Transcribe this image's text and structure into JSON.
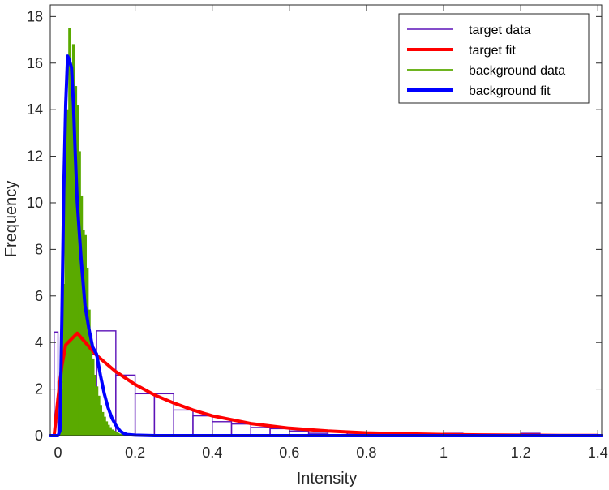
{
  "chart_data": {
    "type": "histogram",
    "xlabel": "Intensity",
    "ylabel": "Frequency",
    "xlim": [
      -0.02,
      1.41
    ],
    "ylim": [
      0,
      18.5
    ],
    "xticks": [
      0,
      0.2,
      0.4,
      0.6,
      0.8,
      1,
      1.2,
      1.4
    ],
    "xtick_labels": [
      "0",
      "0.2",
      "0.4",
      "0.6",
      "0.8",
      "1",
      "1.2",
      "1.4"
    ],
    "yticks": [
      0,
      2,
      4,
      6,
      8,
      10,
      12,
      14,
      16,
      18
    ],
    "ytick_labels": [
      "0",
      "2",
      "4",
      "6",
      "8",
      "10",
      "12",
      "14",
      "16",
      "18"
    ],
    "grid": false,
    "legend_position": "top-right",
    "series": [
      {
        "name": "target data",
        "kind": "histogram-outline",
        "color": "#5c12b8",
        "bin_edges": [
          -0.01,
          0.0,
          0.05,
          0.1,
          0.15,
          0.2,
          0.25,
          0.3,
          0.35,
          0.4,
          0.45,
          0.5,
          0.55,
          0.6,
          0.65,
          0.7,
          0.75,
          0.8,
          0.85,
          0.9,
          0.95,
          1.0,
          1.05,
          1.1,
          1.15,
          1.2,
          1.25,
          1.3,
          1.35,
          1.4
        ],
        "values": [
          4.45,
          2.3,
          3.5,
          4.5,
          2.6,
          1.8,
          1.8,
          1.1,
          0.85,
          0.6,
          0.5,
          0.35,
          0.3,
          0.2,
          0.1,
          0.2,
          0.1,
          0.1,
          0.05,
          0.05,
          0.02,
          0.1,
          0.02,
          0.0,
          0.02,
          0.1,
          0.0,
          0.0,
          0.0
        ]
      },
      {
        "name": "target fit",
        "kind": "line",
        "color": "#ff0000",
        "x": [
          -0.01,
          0.0,
          0.01,
          0.02,
          0.05,
          0.1,
          0.15,
          0.2,
          0.25,
          0.3,
          0.35,
          0.4,
          0.5,
          0.6,
          0.7,
          0.8,
          0.9,
          1.0,
          1.1,
          1.2,
          1.3,
          1.4
        ],
        "y": [
          0.0,
          1.6,
          3.0,
          3.9,
          4.4,
          3.45,
          2.75,
          2.2,
          1.75,
          1.4,
          1.1,
          0.85,
          0.52,
          0.32,
          0.2,
          0.12,
          0.08,
          0.05,
          0.03,
          0.02,
          0.01,
          0.01
        ]
      },
      {
        "name": "background data",
        "kind": "histogram-filled",
        "color": "#5aaa00",
        "bin_width": 0.005,
        "x": [
          0.005,
          0.01,
          0.015,
          0.02,
          0.025,
          0.03,
          0.035,
          0.04,
          0.045,
          0.05,
          0.055,
          0.06,
          0.065,
          0.07,
          0.075,
          0.08,
          0.085,
          0.09,
          0.095,
          0.1,
          0.105,
          0.11,
          0.115,
          0.12,
          0.125,
          0.13,
          0.135,
          0.14,
          0.145,
          0.15,
          0.155,
          0.16,
          0.165,
          0.17,
          0.175
        ],
        "values": [
          0.3,
          2.0,
          6.5,
          11.8,
          14.0,
          17.5,
          15.8,
          16.8,
          15.0,
          14.2,
          12.2,
          10.3,
          8.8,
          8.6,
          7.2,
          5.4,
          4.3,
          3.3,
          2.6,
          2.1,
          1.7,
          1.3,
          1.0,
          0.8,
          0.6,
          0.45,
          0.35,
          0.25,
          0.2,
          0.15,
          0.1,
          0.07,
          0.05,
          0.03,
          0.02
        ]
      },
      {
        "name": "background fit",
        "kind": "line",
        "color": "#0000ff",
        "x": [
          -0.02,
          0.0,
          0.005,
          0.01,
          0.015,
          0.02,
          0.025,
          0.03,
          0.035,
          0.04,
          0.045,
          0.05,
          0.06,
          0.07,
          0.08,
          0.09,
          0.1,
          0.11,
          0.12,
          0.13,
          0.14,
          0.15,
          0.16,
          0.17,
          0.18,
          0.2,
          0.25,
          0.3,
          1.41
        ],
        "y": [
          0.0,
          0.0,
          0.2,
          5.0,
          10.5,
          14.2,
          16.3,
          16.1,
          15.8,
          14.3,
          12.0,
          10.0,
          7.6,
          5.6,
          4.6,
          3.8,
          3.5,
          2.6,
          1.8,
          1.2,
          0.75,
          0.45,
          0.22,
          0.1,
          0.05,
          0.02,
          0.0,
          0.0,
          0.0
        ]
      }
    ]
  }
}
